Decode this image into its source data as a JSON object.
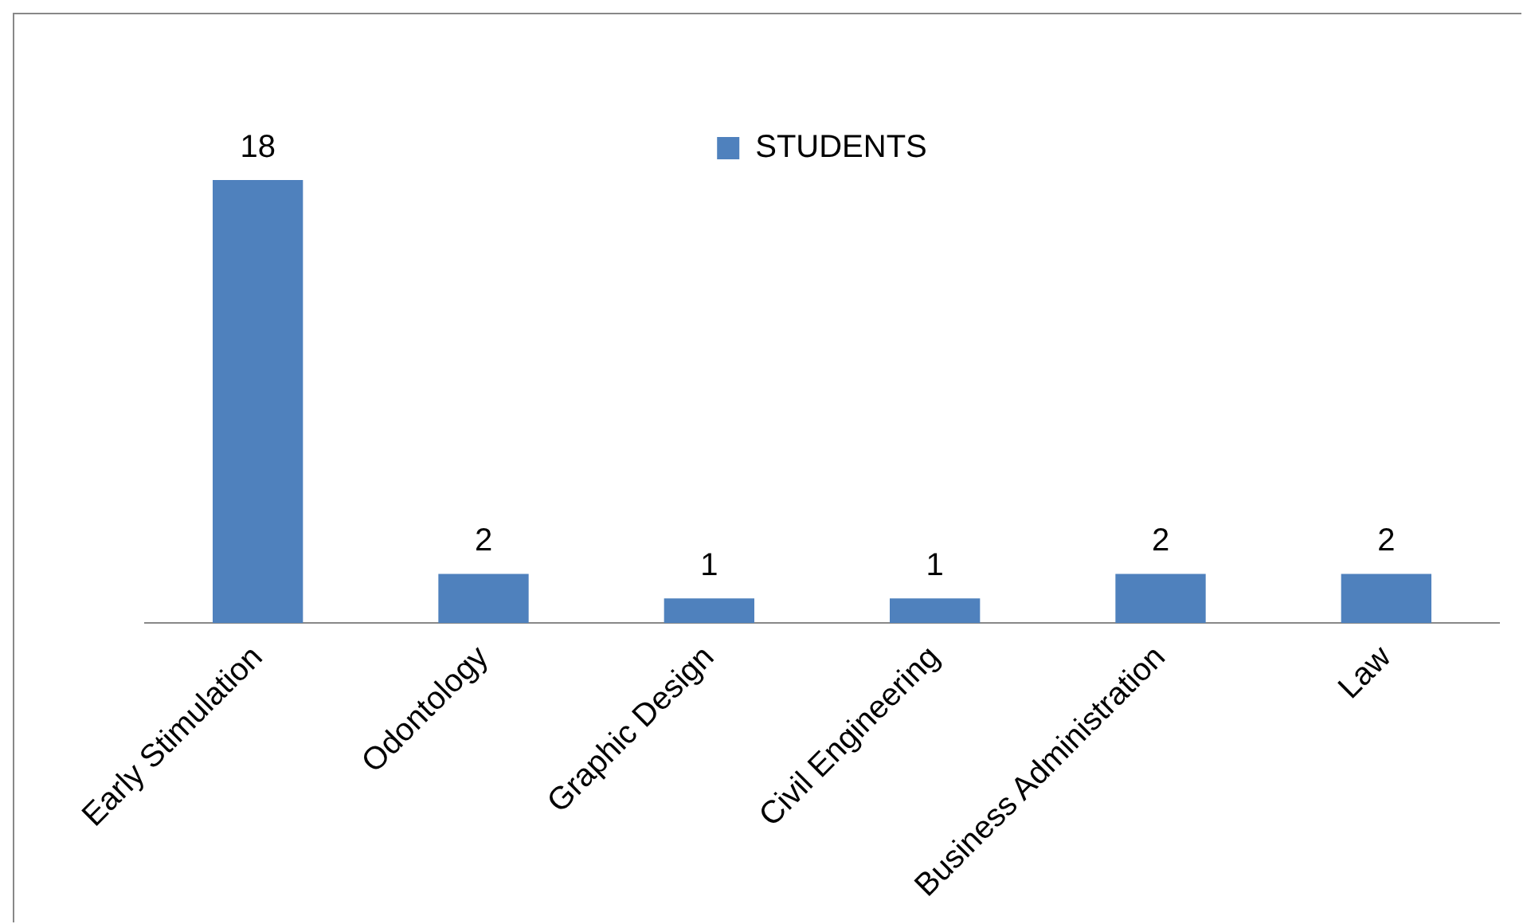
{
  "chart_data": {
    "type": "bar",
    "categories": [
      "Early Stimulation",
      "Odontology",
      "Graphic Design",
      "Civil Engineering",
      "Business Administration",
      "Law"
    ],
    "series": [
      {
        "name": "STUDENTS",
        "color": "#4f81bd",
        "values": [
          18,
          2,
          1,
          1,
          2,
          2
        ]
      }
    ],
    "data_labels": true,
    "legend": "top",
    "grid": false,
    "tick_labels": "x"
  }
}
